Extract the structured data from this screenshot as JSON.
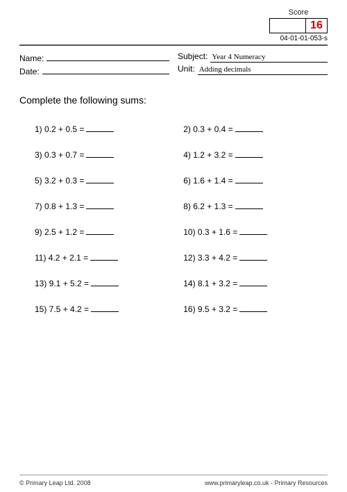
{
  "score": {
    "label": "Score",
    "value": "16",
    "value_color": "#cc0000"
  },
  "doc_id": "04-01-01-053-s",
  "header": {
    "name_label": "Name:",
    "date_label": "Date:",
    "subject_label": "Subject:",
    "subject_value": "Year 4 Numeracy",
    "unit_label": "Unit:",
    "unit_value": "Adding decimals"
  },
  "instruction": "Complete the following sums:",
  "problems": [
    {
      "n": "1)",
      "expr": "0.2 + 0.5 ="
    },
    {
      "n": "2)",
      "expr": "0.3 + 0.4 ="
    },
    {
      "n": "3)",
      "expr": "0.3 + 0.7 ="
    },
    {
      "n": "4)",
      "expr": "1.2 + 3.2 ="
    },
    {
      "n": "5)",
      "expr": "3.2 + 0.3 ="
    },
    {
      "n": "6)",
      "expr": "1.6 + 1.4 ="
    },
    {
      "n": "7)",
      "expr": "0.8 + 1.3 ="
    },
    {
      "n": "8)",
      "expr": "6.2 + 1.3 ="
    },
    {
      "n": "9)",
      "expr": "2.5 + 1.2 ="
    },
    {
      "n": "10)",
      "expr": "0.3 + 1.6 ="
    },
    {
      "n": "11)",
      "expr": "4.2 + 2.1 ="
    },
    {
      "n": "12)",
      "expr": "3.3 + 4.2 ="
    },
    {
      "n": "13)",
      "expr": "9.1 + 5.2 ="
    },
    {
      "n": "14)",
      "expr": "8.1 + 3.2 ="
    },
    {
      "n": "15)",
      "expr": "7.5 + 4.2 ="
    },
    {
      "n": "16)",
      "expr": "9.5 + 3.2 ="
    }
  ],
  "footer": {
    "left": "© Primary Leap Ltd. 2008",
    "right": "www.primaryleap.co.uk  -  Primary Resources"
  }
}
